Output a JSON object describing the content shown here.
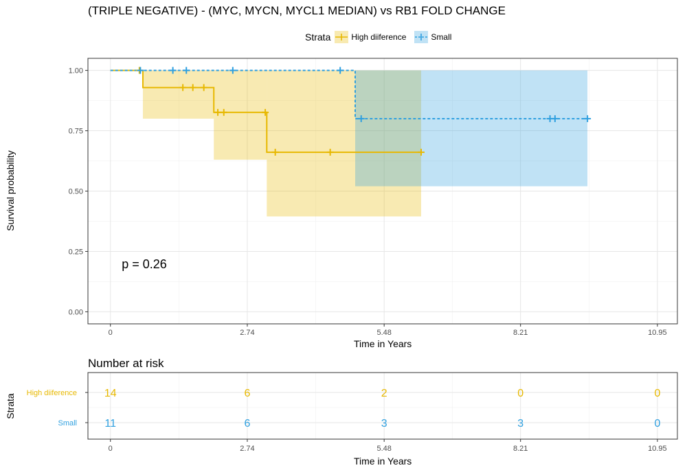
{
  "chart_data": {
    "type": "line",
    "title": "(TRIPLE NEGATIVE) - (MYC, MYCN, MYCL1 MEDIAN) vs RB1 FOLD CHANGE",
    "xlabel": "Time in Years",
    "ylabel": "Survival probability",
    "xlim": [
      -0.45,
      11.35
    ],
    "ylim": [
      -0.05,
      1.05
    ],
    "x_ticks": [
      0,
      2.74,
      5.48,
      8.21,
      10.95
    ],
    "x_tick_labels": [
      "0",
      "2.74",
      "5.48",
      "8.21",
      "10.95"
    ],
    "y_ticks": [
      0,
      0.25,
      0.5,
      0.75,
      1.0
    ],
    "y_tick_labels": [
      "0.00",
      "0.25",
      "0.50",
      "0.75",
      "1.00"
    ],
    "grid": true,
    "legend_title": "Strata",
    "legend_position": "top",
    "annotation": "p = 0.26",
    "annotation_position": [
      0.2,
      0.2
    ],
    "series": [
      {
        "name": "High diiference",
        "color": "#E7B800",
        "line_style": "solid",
        "steps": [
          [
            0,
            1.0
          ],
          [
            0.65,
            0.929
          ],
          [
            2.07,
            0.826
          ],
          [
            3.13,
            0.661
          ],
          [
            6.22,
            0.661
          ]
        ],
        "ci": [
          {
            "from": 0.65,
            "to": 2.07,
            "lower": 0.8,
            "upper": 1.0
          },
          {
            "from": 2.07,
            "to": 3.13,
            "lower": 0.63,
            "upper": 1.0
          },
          {
            "from": 3.13,
            "to": 6.22,
            "lower": 0.395,
            "upper": 1.0
          }
        ],
        "censor_times": [
          0.58,
          1.45,
          1.65,
          1.87,
          2.15,
          2.27,
          3.1,
          3.3,
          4.4,
          6.22
        ],
        "censor_values": [
          1.0,
          0.929,
          0.929,
          0.929,
          0.826,
          0.826,
          0.826,
          0.661,
          0.661,
          0.661
        ]
      },
      {
        "name": "Small",
        "color": "#2E9FDF",
        "line_style": "dashed",
        "steps": [
          [
            0,
            1.0
          ],
          [
            4.9,
            0.8
          ],
          [
            9.55,
            0.8
          ]
        ],
        "ci": [
          {
            "from": 4.9,
            "to": 9.55,
            "lower": 0.52,
            "upper": 1.0
          }
        ],
        "censor_times": [
          0.6,
          1.25,
          1.52,
          2.45,
          4.6,
          5.02,
          8.8,
          8.9,
          9.55
        ],
        "censor_values": [
          1.0,
          1.0,
          1.0,
          1.0,
          1.0,
          0.8,
          0.8,
          0.8,
          0.8
        ]
      }
    ]
  },
  "risk_table": {
    "title": "Number at risk",
    "xlabel": "Time in Years",
    "ylabel": "Strata",
    "times": [
      0,
      2.74,
      5.48,
      8.21,
      10.95
    ],
    "rows": [
      {
        "name": "High diiference",
        "color": "#E7B800",
        "counts": [
          "14",
          "6",
          "2",
          "0",
          "0"
        ]
      },
      {
        "name": "Small",
        "color": "#2E9FDF",
        "counts": [
          "11",
          "6",
          "3",
          "3",
          "0"
        ]
      }
    ]
  }
}
